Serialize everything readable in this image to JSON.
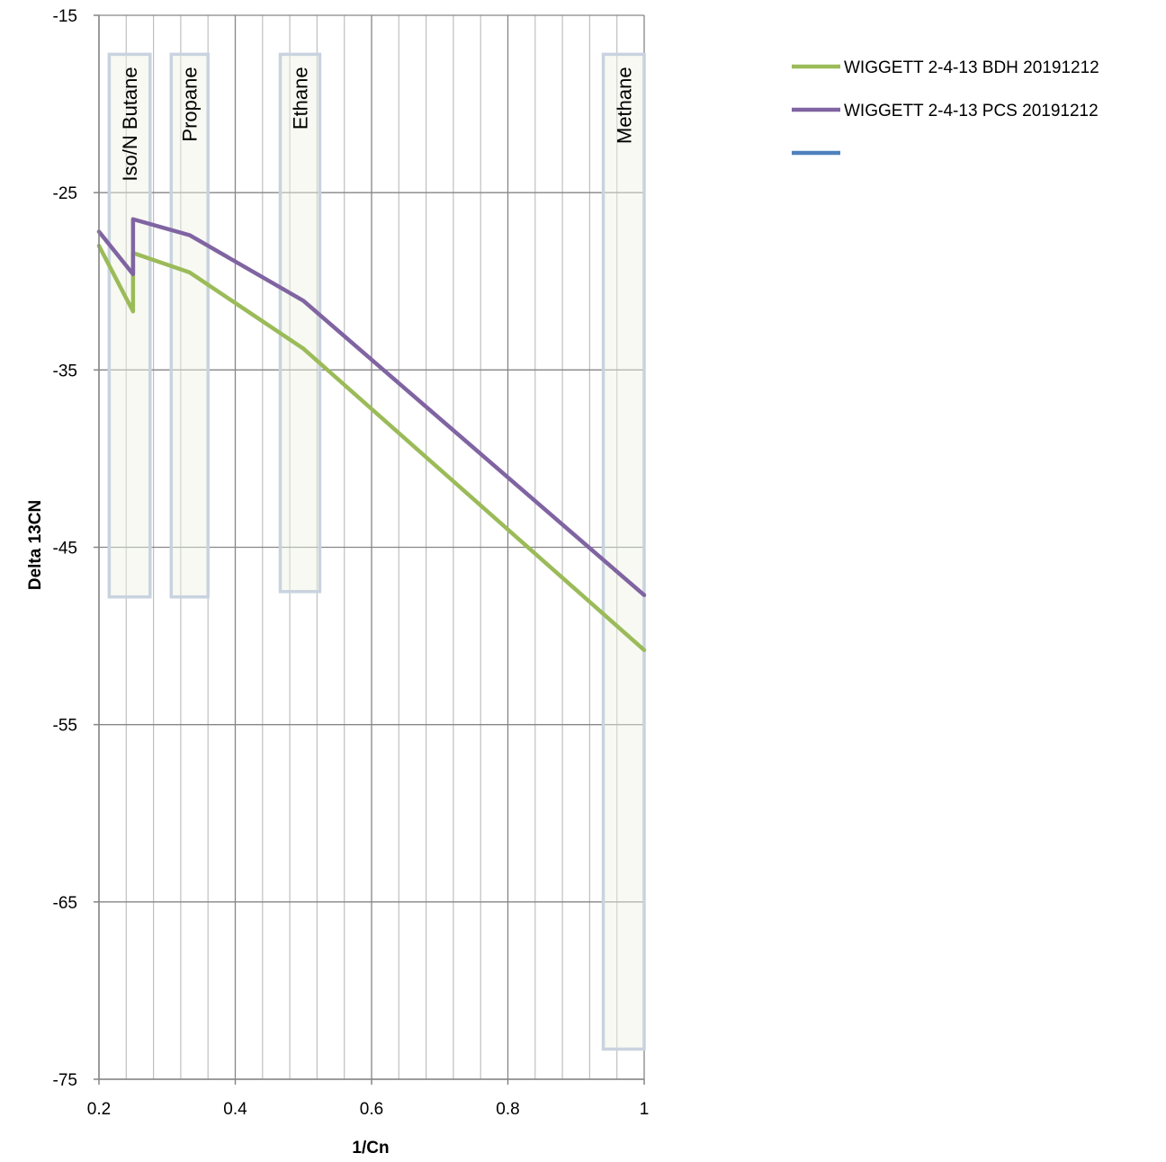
{
  "chart_data": {
    "type": "line",
    "title": "",
    "xlabel": "1/Cn",
    "ylabel": "Delta 13CN",
    "xlim": [
      0.2,
      1
    ],
    "ylim": [
      -75,
      -15
    ],
    "x_ticks": [
      0.2,
      0.4,
      0.6,
      0.8,
      1
    ],
    "x_tick_labels": [
      "0.2",
      "0.4",
      "0.6",
      "0.8",
      "1"
    ],
    "y_ticks": [
      -15,
      -25,
      -35,
      -45,
      -55,
      -65,
      -75
    ],
    "y_tick_labels": [
      "-15",
      "-25",
      "-35",
      "-45",
      "-55",
      "-65",
      "-75"
    ],
    "x_minor_step": 0.04,
    "grid": true,
    "legend_position": "top-right",
    "bands": [
      {
        "label": "Iso/N Butane",
        "x_range": [
          0.215,
          0.275
        ],
        "y_range": [
          -17.2,
          -47.8
        ]
      },
      {
        "label": "Propane",
        "x_range": [
          0.306,
          0.36
        ],
        "y_range": [
          -17.2,
          -47.8
        ]
      },
      {
        "label": "Ethane",
        "x_range": [
          0.466,
          0.524
        ],
        "y_range": [
          -17.2,
          -47.5
        ]
      },
      {
        "label": "Methane",
        "x_range": [
          0.94,
          1.0
        ],
        "y_range": [
          -17.2,
          -73.3
        ]
      }
    ],
    "series": [
      {
        "name": "WIGGETT 2-4-13 BDH 20191212",
        "color": "#9bbb59",
        "x": [
          0.2,
          0.25,
          0.25,
          0.333,
          0.5,
          1.0
        ],
        "y": [
          -28.0,
          -31.7,
          -28.4,
          -29.5,
          -33.8,
          -50.8
        ]
      },
      {
        "name": "WIGGETT 2-4-13 PCS 20191212",
        "color": "#8064a2",
        "x": [
          0.2,
          0.25,
          0.25,
          0.333,
          0.5,
          1.0
        ],
        "y": [
          -27.2,
          -29.6,
          -26.5,
          -27.4,
          -31.1,
          -47.7
        ]
      },
      {
        "name": "",
        "color": "#4f81bd",
        "x": [],
        "y": []
      }
    ]
  }
}
